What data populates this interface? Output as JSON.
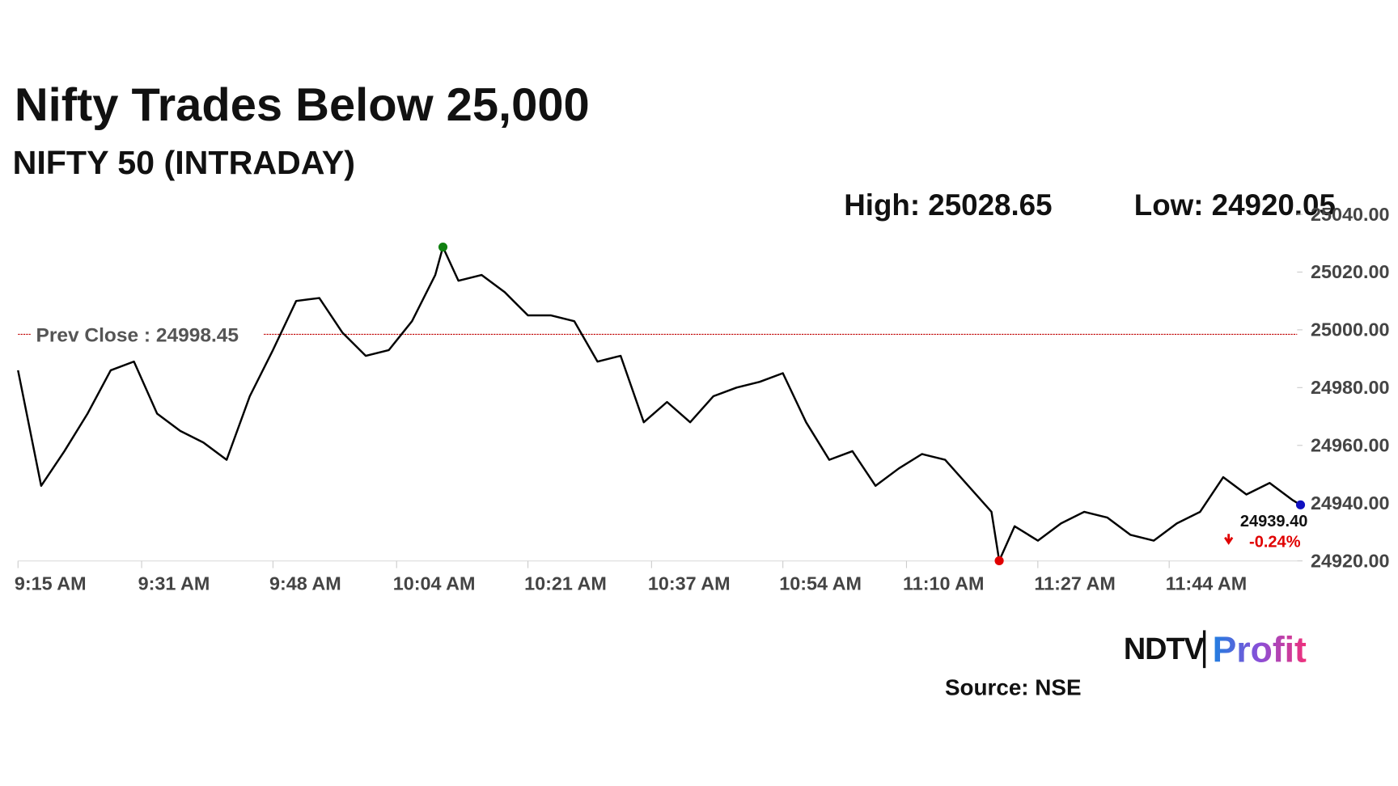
{
  "chart_data": {
    "type": "line",
    "title": "Nifty Trades Below 25,000",
    "subtitle": "NIFTY 50 (INTRADAY)",
    "high_text": "High: 25028.65",
    "low_text": "Low: 24920.05",
    "prev_close": {
      "label": "Prev Close : 24998.45",
      "value": 24998.45,
      "color": "#c00000"
    },
    "last_label": "24939.40",
    "change_label": "-0.24%",
    "x": [
      "9:15 AM",
      "9:18 AM",
      "9:21 AM",
      "9:24 AM",
      "9:27 AM",
      "9:30 AM",
      "9:33 AM",
      "9:36 AM",
      "9:39 AM",
      "9:42 AM",
      "9:45 AM",
      "9:48 AM",
      "9:51 AM",
      "9:54 AM",
      "9:57 AM",
      "10:00 AM",
      "10:03 AM",
      "10:06 AM",
      "10:09 AM",
      "10:10 AM",
      "10:12 AM",
      "10:15 AM",
      "10:18 AM",
      "10:21 AM",
      "10:24 AM",
      "10:27 AM",
      "10:30 AM",
      "10:33 AM",
      "10:36 AM",
      "10:39 AM",
      "10:42 AM",
      "10:45 AM",
      "10:48 AM",
      "10:51 AM",
      "10:54 AM",
      "10:57 AM",
      "11:00 AM",
      "11:03 AM",
      "11:06 AM",
      "11:09 AM",
      "11:12 AM",
      "11:15 AM",
      "11:18 AM",
      "11:21 AM",
      "11:22 AM",
      "11:24 AM",
      "11:27 AM",
      "11:30 AM",
      "11:33 AM",
      "11:36 AM",
      "11:39 AM",
      "11:42 AM",
      "11:45 AM",
      "11:48 AM",
      "11:51 AM",
      "11:54 AM",
      "11:57 AM",
      "12:00 PM",
      "12:01 PM"
    ],
    "series": [
      {
        "name": "NIFTY 50",
        "color": "#000000",
        "values": [
          24986,
          24946,
          24958,
          24971,
          24986,
          24989,
          24971,
          24965,
          24961,
          24955,
          24977,
          24993,
          25010,
          25011,
          24999,
          24991,
          24993,
          25003,
          25019,
          25028.65,
          25017,
          25019,
          25013,
          25005,
          25005,
          25003,
          24989,
          24991,
          24968,
          24975,
          24968,
          24977,
          24980,
          24982,
          24985,
          24968,
          24955,
          24958,
          24946,
          24952,
          24957,
          24955,
          24946,
          24937,
          24920.05,
          24932,
          24927,
          24933,
          24937,
          24935,
          24929,
          24927,
          24933,
          24937,
          24949,
          24943,
          24947,
          24941,
          24939.4
        ]
      }
    ],
    "xticks": [
      "9:15 AM",
      "9:31 AM",
      "9:48 AM",
      "10:04 AM",
      "10:21 AM",
      "10:37 AM",
      "10:54 AM",
      "11:10 AM",
      "11:27 AM",
      "11:44 AM"
    ],
    "ylim": [
      24920,
      25040
    ],
    "yticks": [
      {
        "value": 24920,
        "label": "24920.00"
      },
      {
        "value": 24940,
        "label": "24940.00"
      },
      {
        "value": 24960,
        "label": "24960.00"
      },
      {
        "value": 24980,
        "label": "24980.00"
      },
      {
        "value": 25000,
        "label": "25000.00"
      },
      {
        "value": 25020,
        "label": "25020.00"
      },
      {
        "value": 25040,
        "label": "25040.00"
      }
    ],
    "high_color": "#108010",
    "low_color": "#e00000",
    "last_color": "#1010c0",
    "logo": {
      "left": "NDTV",
      "right": "Profit"
    },
    "source": "Source: NSE"
  }
}
